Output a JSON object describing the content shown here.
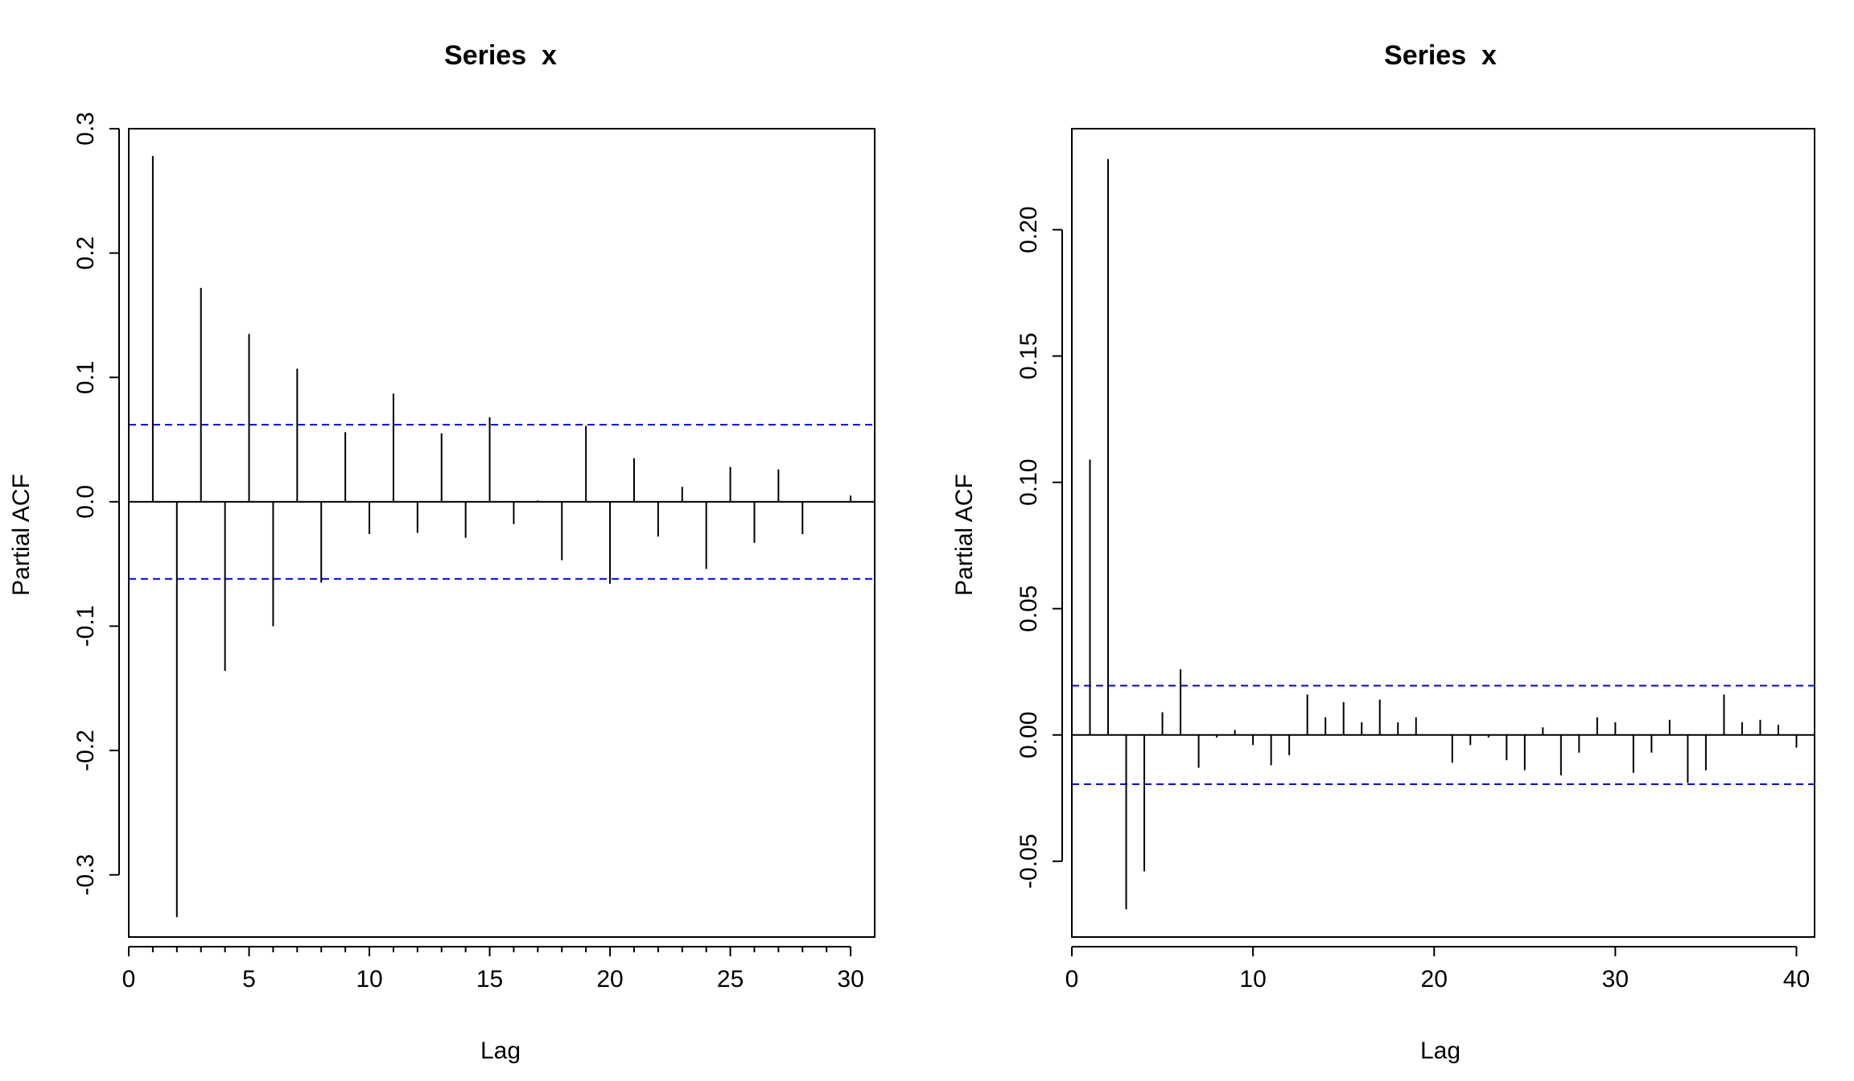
{
  "chart_data": [
    {
      "type": "bar",
      "subtype": "pacf-lollipop",
      "title": "Series  x",
      "xlabel": "Lag",
      "ylabel": "Partial ACF",
      "xlim": [
        0,
        31
      ],
      "ylim": [
        -0.35,
        0.3
      ],
      "xticks": [
        0,
        5,
        10,
        15,
        20,
        25,
        30
      ],
      "yticks": [
        -0.3,
        -0.2,
        -0.1,
        0.0,
        0.1,
        0.2,
        0.3
      ],
      "ytick_labels": [
        "-0.3",
        "-0.2",
        "-0.1",
        "0.0",
        "0.1",
        "0.2",
        "0.3"
      ],
      "grid": false,
      "confidence_band": [
        -0.062,
        0.062
      ],
      "lags": [
        1,
        2,
        3,
        4,
        5,
        6,
        7,
        8,
        9,
        10,
        11,
        12,
        13,
        14,
        15,
        16,
        17,
        18,
        19,
        20,
        21,
        22,
        23,
        24,
        25,
        26,
        27,
        28,
        29,
        30
      ],
      "values": [
        0.278,
        -0.334,
        0.172,
        -0.136,
        0.135,
        -0.1,
        0.107,
        -0.065,
        0.056,
        -0.026,
        0.087,
        -0.025,
        0.055,
        -0.029,
        0.068,
        -0.018,
        0.001,
        -0.047,
        0.061,
        -0.066,
        0.035,
        -0.028,
        0.012,
        -0.054,
        0.028,
        -0.033,
        0.026,
        -0.026,
        0.0,
        0.005
      ]
    },
    {
      "type": "bar",
      "subtype": "pacf-lollipop",
      "title": "Series  x",
      "xlabel": "Lag",
      "ylabel": "Partial ACF",
      "xlim": [
        0,
        41
      ],
      "ylim": [
        -0.08,
        0.24
      ],
      "xticks": [
        0,
        10,
        20,
        30,
        40
      ],
      "yticks": [
        -0.05,
        0.0,
        0.05,
        0.1,
        0.15,
        0.2
      ],
      "ytick_labels": [
        "-0.05",
        "0.00",
        "0.05",
        "0.10",
        "0.15",
        "0.20"
      ],
      "grid": false,
      "confidence_band": [
        -0.0195,
        0.0195
      ],
      "lags": [
        1,
        2,
        3,
        4,
        5,
        6,
        7,
        8,
        9,
        10,
        11,
        12,
        13,
        14,
        15,
        16,
        17,
        18,
        19,
        20,
        21,
        22,
        23,
        24,
        25,
        26,
        27,
        28,
        29,
        30,
        31,
        32,
        33,
        34,
        35,
        36,
        37,
        38,
        39,
        40
      ],
      "values": [
        0.109,
        0.228,
        -0.069,
        -0.054,
        0.009,
        0.026,
        -0.013,
        -0.001,
        0.002,
        -0.004,
        -0.012,
        -0.008,
        0.016,
        0.007,
        0.013,
        0.005,
        0.014,
        0.005,
        0.007,
        0.0,
        -0.011,
        -0.004,
        -0.001,
        -0.01,
        -0.014,
        0.003,
        -0.016,
        -0.007,
        0.007,
        0.005,
        -0.015,
        -0.007,
        0.006,
        -0.019,
        -0.014,
        0.016,
        0.005,
        0.006,
        0.004,
        -0.005
      ]
    }
  ]
}
